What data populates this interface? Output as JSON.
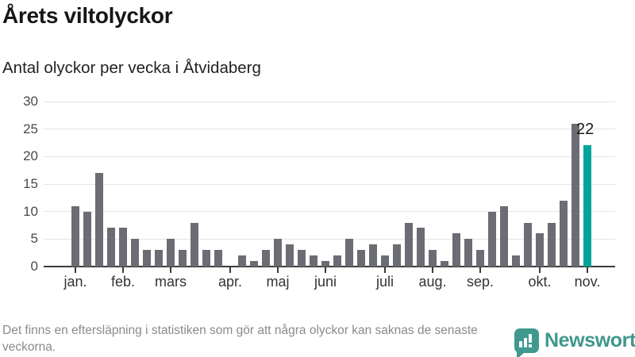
{
  "header": {
    "title": "Årets viltolyckor",
    "subtitle": "Antal olyckor per vecka i Åtvidaberg"
  },
  "chart_data": {
    "type": "bar",
    "title": "Årets viltolyckor",
    "subtitle": "Antal olyckor per vecka i Åtvidaberg",
    "x_unit": "vecka",
    "values": [
      11,
      10,
      17,
      7,
      7,
      5,
      3,
      3,
      5,
      3,
      8,
      3,
      3,
      0,
      2,
      1,
      3,
      5,
      4,
      3,
      2,
      1,
      2,
      5,
      3,
      4,
      2,
      4,
      8,
      7,
      3,
      1,
      6,
      5,
      3,
      10,
      11,
      2,
      8,
      6,
      8,
      12,
      26,
      22
    ],
    "highlight_index": 43,
    "annotation": {
      "text": "22",
      "index": 43
    },
    "month_ticks": [
      {
        "label": "jan.",
        "index": 0
      },
      {
        "label": "feb.",
        "index": 4
      },
      {
        "label": "mars",
        "index": 8
      },
      {
        "label": "apr.",
        "index": 13
      },
      {
        "label": "maj",
        "index": 17
      },
      {
        "label": "juni",
        "index": 21
      },
      {
        "label": "juli",
        "index": 26
      },
      {
        "label": "aug.",
        "index": 30
      },
      {
        "label": "sep.",
        "index": 34
      },
      {
        "label": "okt.",
        "index": 39
      },
      {
        "label": "nov.",
        "index": 43
      }
    ],
    "yticks": [
      0,
      5,
      10,
      15,
      20,
      25,
      30
    ],
    "ylim": [
      0,
      30
    ],
    "grid": true,
    "legend": null,
    "colors": {
      "bar": "#6c6c74",
      "highlight": "#00a49a",
      "axis": "#3b3b3b",
      "gridline": "#e4e4e4"
    }
  },
  "footer": {
    "note": "Det finns en eftersläpning i statistiken som gör att några olyckor kan saknas de senaste veckorna.",
    "brand": "Newsworthy"
  }
}
